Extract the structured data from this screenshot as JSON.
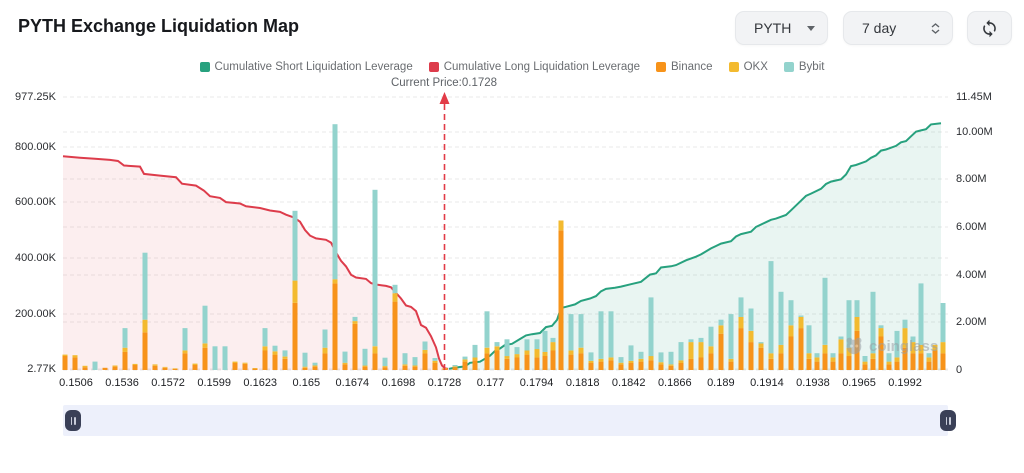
{
  "header": {
    "title": "PYTH Exchange Liquidation Map"
  },
  "controls": {
    "symbol": "PYTH",
    "period": "7 day",
    "refresh_icon": "refresh-icon"
  },
  "legend": {
    "position": "top",
    "items": [
      {
        "label": "Cumulative Short Liquidation Leverage",
        "color": "#27a17e"
      },
      {
        "label": "Cumulative Long Liquidation Leverage",
        "color": "#dd3c4b"
      },
      {
        "label": "Binance",
        "color": "#f7931a"
      },
      {
        "label": "OKX",
        "color": "#f3ba2f"
      },
      {
        "label": "Bybit",
        "color": "#93d3cd"
      }
    ]
  },
  "current_price_label": "Current Price:0.1728",
  "current_price": 0.1728,
  "watermark": "coinglass",
  "chart_data": {
    "type": "bar+line",
    "title": "PYTH Exchange Liquidation Map",
    "grid": true,
    "legend_position": "top",
    "x_ticks": [
      "0.1506",
      "0.1536",
      "0.1572",
      "0.1599",
      "0.1623",
      "0.165",
      "0.1674",
      "0.1698",
      "0.1728",
      "0.177",
      "0.1794",
      "0.1818",
      "0.1842",
      "0.1866",
      "0.189",
      "0.1914",
      "0.1938",
      "0.1965",
      "0.1992"
    ],
    "left_axis": {
      "unit": "K",
      "max_value": 977.25,
      "ticks": [
        {
          "label": "977.25K",
          "value": 977.25
        },
        {
          "label": "800.00K",
          "value": 800
        },
        {
          "label": "600.00K",
          "value": 600
        },
        {
          "label": "400.00K",
          "value": 400
        },
        {
          "label": "200.00K",
          "value": 200
        },
        {
          "label": "2.77K",
          "value": 2.77
        }
      ]
    },
    "right_axis": {
      "unit": "M",
      "max_value": 11.45,
      "ticks": [
        {
          "label": "11.45M",
          "value": 11.45
        },
        {
          "label": "10.00M",
          "value": 10
        },
        {
          "label": "8.00M",
          "value": 8
        },
        {
          "label": "6.00M",
          "value": 6
        },
        {
          "label": "4.00M",
          "value": 4
        },
        {
          "label": "2.00M",
          "value": 2
        },
        {
          "label": "0",
          "value": 0
        }
      ]
    },
    "series": {
      "bars_note": "stacked bars [x_px, Binance, OKX, Bybit] in thousands (left axis)",
      "bars": [
        [
          65,
          50,
          5,
          0
        ],
        [
          75,
          45,
          8,
          0
        ],
        [
          85,
          10,
          5,
          0
        ],
        [
          95,
          0,
          0,
          30
        ],
        [
          105,
          8,
          0,
          0
        ],
        [
          115,
          12,
          4,
          0
        ],
        [
          125,
          65,
          15,
          70
        ],
        [
          135,
          18,
          4,
          0
        ],
        [
          145,
          135,
          45,
          240
        ],
        [
          155,
          15,
          5,
          0
        ],
        [
          165,
          8,
          3,
          0
        ],
        [
          175,
          4,
          2,
          0
        ],
        [
          185,
          60,
          10,
          80
        ],
        [
          195,
          18,
          5,
          0
        ],
        [
          205,
          80,
          15,
          135
        ],
        [
          215,
          0,
          0,
          85
        ],
        [
          225,
          0,
          0,
          85
        ],
        [
          235,
          25,
          5,
          0
        ],
        [
          245,
          22,
          4,
          0
        ],
        [
          255,
          5,
          2,
          0
        ],
        [
          265,
          70,
          15,
          65
        ],
        [
          275,
          55,
          12,
          20
        ],
        [
          285,
          40,
          8,
          22
        ],
        [
          295,
          240,
          80,
          250
        ],
        [
          305,
          8,
          4,
          50
        ],
        [
          315,
          12,
          4,
          10
        ],
        [
          325,
          60,
          20,
          65
        ],
        [
          335,
          310,
          15,
          555
        ],
        [
          345,
          20,
          6,
          40
        ],
        [
          355,
          165,
          10,
          15
        ],
        [
          365,
          12,
          4,
          60
        ],
        [
          375,
          60,
          25,
          560
        ],
        [
          385,
          10,
          4,
          30
        ],
        [
          395,
          245,
          30,
          30
        ],
        [
          405,
          15,
          5,
          40
        ],
        [
          415,
          12,
          4,
          30
        ],
        [
          425,
          60,
          12,
          30
        ],
        [
          435,
          25,
          8,
          10
        ],
        [
          445,
          5,
          2,
          0
        ],
        [
          455,
          10,
          3,
          5
        ],
        [
          465,
          30,
          8,
          10
        ],
        [
          475,
          35,
          10,
          45
        ],
        [
          487,
          60,
          20,
          130
        ],
        [
          497,
          70,
          15,
          15
        ],
        [
          507,
          40,
          10,
          60
        ],
        [
          517,
          45,
          12,
          25
        ],
        [
          527,
          55,
          15,
          40
        ],
        [
          537,
          45,
          30,
          35
        ],
        [
          545,
          50,
          15,
          75
        ],
        [
          553,
          70,
          30,
          15
        ],
        [
          561,
          500,
          35,
          0
        ],
        [
          571,
          55,
          15,
          130
        ],
        [
          581,
          60,
          20,
          120
        ],
        [
          591,
          25,
          8,
          30
        ],
        [
          601,
          30,
          10,
          170
        ],
        [
          611,
          35,
          10,
          165
        ],
        [
          621,
          20,
          6,
          20
        ],
        [
          631,
          25,
          8,
          55
        ],
        [
          641,
          30,
          10,
          25
        ],
        [
          651,
          35,
          15,
          210
        ],
        [
          661,
          20,
          8,
          35
        ],
        [
          671,
          15,
          5,
          45
        ],
        [
          681,
          25,
          10,
          65
        ],
        [
          691,
          40,
          60,
          10
        ],
        [
          701,
          45,
          55,
          15
        ],
        [
          711,
          60,
          25,
          70
        ],
        [
          721,
          130,
          30,
          20
        ],
        [
          731,
          30,
          10,
          160
        ],
        [
          741,
          150,
          40,
          70
        ],
        [
          751,
          100,
          40,
          80
        ],
        [
          761,
          80,
          15,
          5
        ],
        [
          771,
          40,
          20,
          330
        ],
        [
          781,
          60,
          30,
          190
        ],
        [
          791,
          120,
          40,
          90
        ],
        [
          801,
          150,
          40,
          5
        ],
        [
          809,
          40,
          20,
          100
        ],
        [
          817,
          30,
          15,
          15
        ],
        [
          825,
          60,
          30,
          240
        ],
        [
          833,
          30,
          15,
          15
        ],
        [
          841,
          60,
          50,
          10
        ],
        [
          849,
          50,
          30,
          170
        ],
        [
          857,
          140,
          50,
          60
        ],
        [
          865,
          20,
          10,
          20
        ],
        [
          873,
          40,
          20,
          220
        ],
        [
          881,
          120,
          30,
          10
        ],
        [
          889,
          20,
          10,
          30
        ],
        [
          897,
          30,
          15,
          95
        ],
        [
          905,
          80,
          70,
          30
        ],
        [
          913,
          60,
          40,
          20
        ],
        [
          921,
          60,
          30,
          220
        ],
        [
          929,
          30,
          15,
          15
        ],
        [
          935,
          70,
          20,
          0
        ],
        [
          943,
          60,
          40,
          140
        ]
      ],
      "long_line": {
        "name": "Cumulative Long Liquidation Leverage",
        "unit": "K",
        "points": [
          [
            63,
            765
          ],
          [
            80,
            760
          ],
          [
            95,
            756
          ],
          [
            110,
            752
          ],
          [
            118,
            748
          ],
          [
            124,
            732
          ],
          [
            140,
            728
          ],
          [
            144,
            702
          ],
          [
            160,
            696
          ],
          [
            176,
            690
          ],
          [
            182,
            667
          ],
          [
            196,
            660
          ],
          [
            204,
            642
          ],
          [
            210,
            622
          ],
          [
            220,
            616
          ],
          [
            226,
            601
          ],
          [
            240,
            596
          ],
          [
            246,
            586
          ],
          [
            260,
            580
          ],
          [
            270,
            571
          ],
          [
            280,
            566
          ],
          [
            286,
            556
          ],
          [
            294,
            546
          ],
          [
            300,
            531
          ],
          [
            305,
            501
          ],
          [
            310,
            481
          ],
          [
            316,
            471
          ],
          [
            326,
            466
          ],
          [
            331,
            456
          ],
          [
            336,
            421
          ],
          [
            341,
            391
          ],
          [
            346,
            371
          ],
          [
            351,
            341
          ],
          [
            356,
            331
          ],
          [
            366,
            326
          ],
          [
            371,
            311
          ],
          [
            376,
            306
          ],
          [
            386,
            301
          ],
          [
            391,
            296
          ],
          [
            396,
            276
          ],
          [
            401,
            256
          ],
          [
            406,
            231
          ],
          [
            411,
            226
          ],
          [
            416,
            211
          ],
          [
            421,
            161
          ],
          [
            426,
            151
          ],
          [
            431,
            121
          ],
          [
            436,
            81
          ],
          [
            439,
            41
          ],
          [
            442,
            16
          ],
          [
            445,
            6
          ],
          [
            448,
            4
          ]
        ]
      },
      "short_line": {
        "name": "Cumulative Short Liquidation Leverage",
        "unit": "M",
        "points": [
          [
            449,
            0.05
          ],
          [
            455,
            0.1
          ],
          [
            465,
            0.15
          ],
          [
            470,
            0.3
          ],
          [
            480,
            0.35
          ],
          [
            490,
            0.6
          ],
          [
            495,
            0.8
          ],
          [
            500,
            0.9
          ],
          [
            505,
            1.05
          ],
          [
            512,
            1.1
          ],
          [
            520,
            1.3
          ],
          [
            526,
            1.45
          ],
          [
            532,
            1.5
          ],
          [
            540,
            1.55
          ],
          [
            546,
            1.8
          ],
          [
            552,
            1.85
          ],
          [
            557,
            2.1
          ],
          [
            561,
            2.6
          ],
          [
            566,
            2.65
          ],
          [
            575,
            2.75
          ],
          [
            581,
            2.9
          ],
          [
            590,
            3.0
          ],
          [
            596,
            3.1
          ],
          [
            601,
            3.3
          ],
          [
            606,
            3.4
          ],
          [
            615,
            3.45
          ],
          [
            621,
            3.5
          ],
          [
            631,
            3.6
          ],
          [
            641,
            3.7
          ],
          [
            650,
            4.0
          ],
          [
            656,
            4.05
          ],
          [
            661,
            4.3
          ],
          [
            671,
            4.35
          ],
          [
            676,
            4.4
          ],
          [
            686,
            4.6
          ],
          [
            696,
            4.75
          ],
          [
            701,
            4.85
          ],
          [
            711,
            5.1
          ],
          [
            716,
            5.2
          ],
          [
            721,
            5.3
          ],
          [
            731,
            5.4
          ],
          [
            736,
            5.6
          ],
          [
            741,
            5.7
          ],
          [
            751,
            5.8
          ],
          [
            756,
            6.0
          ],
          [
            766,
            6.2
          ],
          [
            771,
            6.3
          ],
          [
            776,
            6.35
          ],
          [
            786,
            6.5
          ],
          [
            791,
            6.7
          ],
          [
            801,
            7.1
          ],
          [
            806,
            7.3
          ],
          [
            811,
            7.4
          ],
          [
            821,
            7.6
          ],
          [
            826,
            7.8
          ],
          [
            831,
            7.9
          ],
          [
            841,
            8.0
          ],
          [
            846,
            8.2
          ],
          [
            851,
            8.55
          ],
          [
            856,
            8.6
          ],
          [
            866,
            8.75
          ],
          [
            871,
            8.9
          ],
          [
            876,
            9.0
          ],
          [
            881,
            9.2
          ],
          [
            886,
            9.25
          ],
          [
            896,
            9.4
          ],
          [
            901,
            9.55
          ],
          [
            906,
            9.6
          ],
          [
            911,
            9.8
          ],
          [
            916,
            10.0
          ],
          [
            921,
            10.05
          ],
          [
            926,
            10.1
          ],
          [
            931,
            10.3
          ],
          [
            941,
            10.35
          ]
        ]
      }
    },
    "colors": {
      "short_line": "#27a17e",
      "short_fill": "rgba(38,161,124,0.10)",
      "long_line": "#dd3c4b",
      "long_fill": "rgba(222,64,76,0.09)",
      "binance": "#f7931a",
      "okx": "#f3ba2f",
      "bybit": "#93d3cd",
      "current_price_line": "#e23b47",
      "grid": "#e9e9e9"
    }
  }
}
